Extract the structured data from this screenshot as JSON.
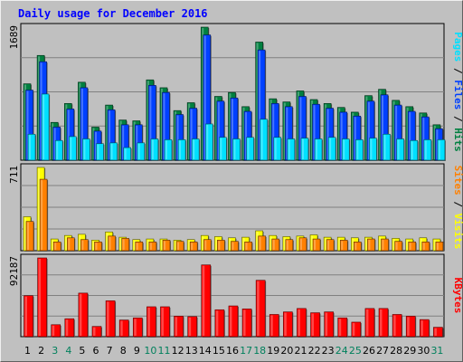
{
  "chart_data": {
    "type": "bar",
    "title": "Daily usage for December 2016",
    "x": [
      "1",
      "2",
      "3",
      "4",
      "5",
      "6",
      "7",
      "8",
      "9",
      "10",
      "11",
      "12",
      "13",
      "14",
      "15",
      "16",
      "17",
      "18",
      "19",
      "20",
      "21",
      "22",
      "23",
      "24",
      "25",
      "26",
      "27",
      "28",
      "29",
      "30",
      "31"
    ],
    "weekend_days": [
      3,
      4,
      10,
      11,
      17,
      18,
      24,
      25,
      31
    ],
    "panels": [
      {
        "name": "pages-files-hits",
        "ymax_label": "1689",
        "ymax": 1689,
        "side_labels": [
          "Pages",
          "Files",
          "Hits"
        ],
        "series": [
          {
            "name": "Hits",
            "color": "#008040",
            "values": [
              970,
              1330,
              480,
              720,
              990,
              420,
              700,
              510,
              500,
              1020,
              920,
              630,
              730,
              1689,
              810,
              860,
              680,
              1500,
              780,
              740,
              880,
              770,
              720,
              670,
              610,
              820,
              900,
              760,
              680,
              600,
              450
            ]
          },
          {
            "name": "Files",
            "color": "#0040ff",
            "values": [
              890,
              1250,
              420,
              650,
              920,
              370,
              640,
              450,
              450,
              950,
              860,
              580,
              660,
              1590,
              750,
              790,
              620,
              1400,
              720,
              680,
              810,
              710,
              660,
              610,
              560,
              750,
              830,
              700,
              620,
              550,
              400
            ]
          },
          {
            "name": "Pages",
            "color": "#00e0ff",
            "values": [
              330,
              840,
              250,
              300,
              270,
              210,
              220,
              160,
              220,
              270,
              260,
              260,
              270,
              460,
              290,
              270,
              290,
              520,
              290,
              270,
              280,
              270,
              290,
              270,
              260,
              280,
              330,
              270,
              250,
              260,
              260
            ]
          }
        ]
      },
      {
        "name": "sites-visits",
        "ymax_label": "711",
        "ymax": 711,
        "side_labels": [
          "Sites",
          "Visits"
        ],
        "series": [
          {
            "name": "Visits",
            "color": "#ffff00",
            "values": [
              290,
              711,
              100,
              130,
              140,
              90,
              160,
              115,
              95,
              100,
              100,
              90,
              95,
              130,
              120,
              110,
              115,
              170,
              130,
              120,
              125,
              135,
              115,
              115,
              110,
              115,
              125,
              105,
              100,
              110,
              100
            ]
          },
          {
            "name": "Sites",
            "color": "#ff8000",
            "values": [
              250,
              610,
              75,
              110,
              95,
              75,
              125,
              105,
              75,
              75,
              90,
              80,
              75,
              95,
              90,
              80,
              75,
              125,
              100,
              95,
              110,
              100,
              95,
              90,
              75,
              100,
              100,
              80,
              75,
              75,
              75
            ]
          }
        ]
      },
      {
        "name": "kbytes",
        "ymax_label": "92187",
        "ymax": 92187,
        "side_labels": [
          "KBytes"
        ],
        "series": [
          {
            "name": "KBytes",
            "color": "#ff0000",
            "values": [
              48000,
              92187,
              14000,
              21000,
              51000,
              12000,
              42000,
              19500,
              22000,
              35000,
              35000,
              24000,
              23500,
              84000,
              31500,
              36000,
              32500,
              66000,
              26000,
              29000,
              33000,
              28000,
              29000,
              22000,
              17000,
              33000,
              33000,
              26000,
              24000,
              20000,
              11000
            ]
          }
        ]
      }
    ]
  }
}
